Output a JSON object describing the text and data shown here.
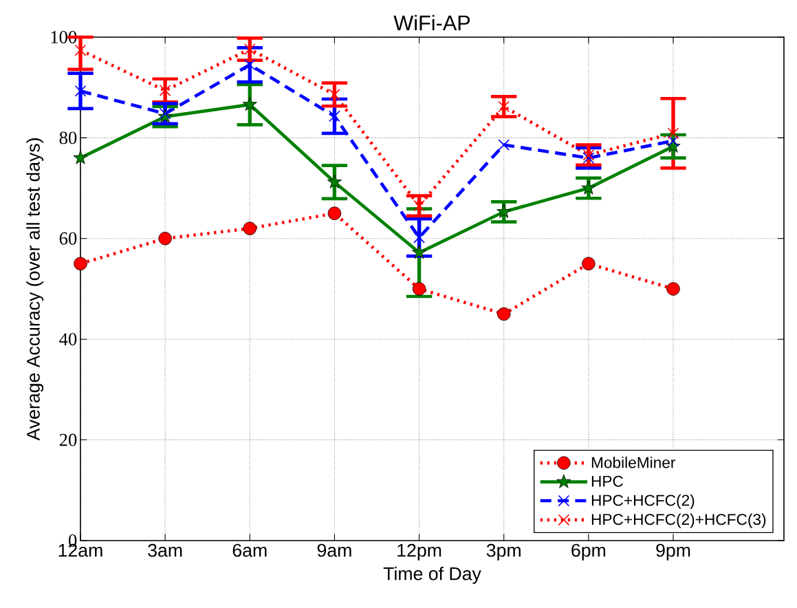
{
  "chart_data": {
    "type": "line",
    "title": "WiFi-AP",
    "xlabel": "Time of Day",
    "ylabel": "Average Accuracy (over all test days)",
    "categories": [
      "12am",
      "3am",
      "6am",
      "9am",
      "12pm",
      "3pm",
      "6pm",
      "9pm"
    ],
    "ylim": [
      0,
      100
    ],
    "yticks": [
      0,
      20,
      40,
      60,
      80,
      100
    ],
    "grid": true,
    "legend": "bottom right",
    "series": [
      {
        "name": "MobileMiner",
        "color": "#ff0000",
        "marker": "circle",
        "line_style": "dotted",
        "values": [
          55,
          60,
          62,
          65,
          50,
          45,
          55,
          50
        ]
      },
      {
        "name": "HPC",
        "color": "#008000",
        "marker": "star",
        "line_style": "solid",
        "values": [
          76,
          84.2,
          86.6,
          71.2,
          57.2,
          65.3,
          70,
          78.3
        ],
        "errors": [
          null,
          2,
          4,
          3.3,
          8.7,
          2,
          2,
          2.3
        ]
      },
      {
        "name": "HPC+HCFC(2)",
        "color": "#0000ff",
        "marker": "cross",
        "line_style": "dashed",
        "values": [
          89.3,
          84.8,
          94.5,
          84.3,
          60.2,
          78.6,
          76,
          79.4
        ],
        "errors": [
          3.5,
          2,
          3.4,
          3.4,
          3.7,
          null,
          2,
          null
        ]
      },
      {
        "name": "HPC+HCFC(2)+HCFC(3)",
        "color": "#ff0000",
        "marker": "cross",
        "line_style": "dotted",
        "values": [
          97.4,
          89.4,
          97.6,
          88.6,
          66.5,
          86.2,
          76.6,
          80.9
        ],
        "errors": [
          [
            93.6,
            100
          ],
          2.3,
          2.2,
          2.3,
          2,
          2,
          2,
          6.9
        ]
      }
    ]
  }
}
